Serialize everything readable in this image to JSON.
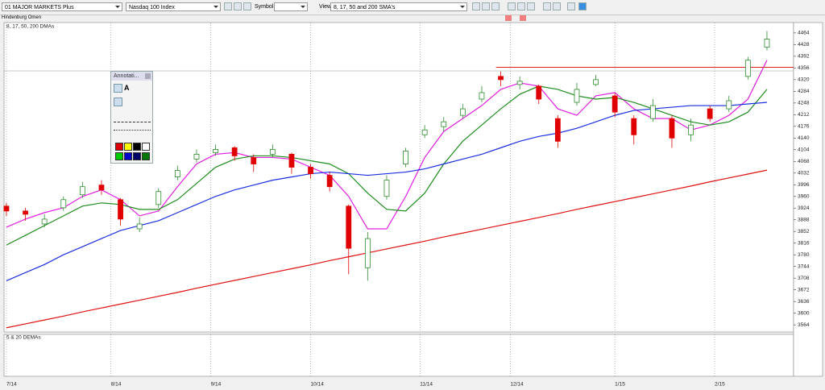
{
  "ui": {
    "list_name": "01 MAJOR MARKETS Plus",
    "index_name": "Nasdaq 100 Index",
    "symbol_label": "Symbol:",
    "view_label": "View:",
    "view_name": "8, 17, 50 and 200 SMA's",
    "study_name": "Hindenburg Omen",
    "panel_title": "8, 17, 50, 200 DMAs",
    "annotation_title": "Annotati...",
    "annotation_text_tool": "A",
    "lower_panel_title": "5 & 20 DEMAs"
  },
  "chart_data": {
    "type": "candlestick",
    "x": [
      0,
      4,
      8,
      12,
      16,
      20,
      24,
      28,
      32,
      36,
      40,
      44,
      48,
      52,
      56,
      60,
      64,
      68,
      72,
      76,
      80,
      84,
      88,
      92,
      96,
      100,
      104,
      108,
      112,
      116,
      120,
      124,
      128,
      132,
      136,
      140,
      144,
      148,
      152,
      156,
      160
    ],
    "open": [
      3930,
      3915,
      3875,
      3925,
      3965,
      3995,
      3950,
      3860,
      3935,
      4020,
      4075,
      4095,
      4110,
      4080,
      4090,
      4090,
      4050,
      4025,
      3930,
      3740,
      3960,
      4060,
      4150,
      4175,
      4210,
      4260,
      4330,
      4305,
      4300,
      4200,
      4250,
      4305,
      4270,
      4200,
      4200,
      4200,
      4150,
      4230,
      4230,
      4330,
      4420
    ],
    "high": [
      3940,
      3925,
      3905,
      3960,
      4005,
      4010,
      3955,
      3895,
      3985,
      4055,
      4105,
      4120,
      4115,
      4090,
      4120,
      4095,
      4060,
      4035,
      3935,
      3850,
      4025,
      4110,
      4180,
      4205,
      4245,
      4300,
      4345,
      4330,
      4305,
      4210,
      4310,
      4335,
      4280,
      4210,
      4260,
      4210,
      4200,
      4240,
      4270,
      4390,
      4470
    ],
    "low": [
      3900,
      3885,
      3865,
      3915,
      3955,
      3965,
      3870,
      3850,
      3925,
      4010,
      4065,
      4085,
      4070,
      4035,
      4080,
      4030,
      4015,
      3975,
      3720,
      3700,
      3950,
      4050,
      4140,
      4160,
      4200,
      4250,
      4300,
      4290,
      4245,
      4110,
      4240,
      4300,
      4205,
      4120,
      4190,
      4110,
      4130,
      4190,
      4220,
      4320,
      4410
    ],
    "close": [
      3915,
      3905,
      3890,
      3950,
      3990,
      3980,
      3890,
      3875,
      3975,
      4040,
      4090,
      4105,
      4085,
      4060,
      4105,
      4050,
      4030,
      3990,
      3800,
      3830,
      4010,
      4100,
      4165,
      4190,
      4230,
      4280,
      4320,
      4315,
      4260,
      4130,
      4290,
      4320,
      4220,
      4150,
      4240,
      4140,
      4180,
      4200,
      4255,
      4380,
      4445
    ],
    "up_color": "#2e8b2e",
    "down_color": "#e00000",
    "series": [
      {
        "color": "#e020e0",
        "values": [
          3865,
          3890,
          3910,
          3925,
          3960,
          3980,
          3950,
          3900,
          3915,
          3990,
          4060,
          4090,
          4095,
          4080,
          4080,
          4075,
          4050,
          4025,
          3960,
          3860,
          3860,
          3960,
          4080,
          4160,
          4200,
          4240,
          4290,
          4310,
          4300,
          4230,
          4210,
          4270,
          4280,
          4230,
          4200,
          4200,
          4165,
          4180,
          4210,
          4260,
          4380
        ]
      },
      {
        "color": "#1e8c1e",
        "values": [
          3810,
          3840,
          3870,
          3900,
          3930,
          3940,
          3935,
          3920,
          3920,
          3950,
          4000,
          4050,
          4075,
          4085,
          4085,
          4080,
          4070,
          4060,
          4030,
          3970,
          3920,
          3915,
          3970,
          4060,
          4130,
          4180,
          4230,
          4275,
          4300,
          4290,
          4270,
          4260,
          4265,
          4250,
          4230,
          4210,
          4190,
          4180,
          4190,
          4220,
          4290
        ]
      },
      {
        "color": "#1a2ee0",
        "values": [
          3700,
          3725,
          3750,
          3780,
          3805,
          3830,
          3855,
          3870,
          3885,
          3910,
          3935,
          3960,
          3980,
          3995,
          4010,
          4020,
          4030,
          4035,
          4030,
          4025,
          4030,
          4035,
          4045,
          4060,
          4075,
          4090,
          4110,
          4130,
          4145,
          4155,
          4170,
          4190,
          4210,
          4225,
          4230,
          4235,
          4240,
          4240,
          4240,
          4245,
          4250
        ]
      },
      {
        "color": "#e01010",
        "values": [
          3555,
          3567,
          3579,
          3591,
          3604,
          3616,
          3628,
          3640,
          3652,
          3664,
          3677,
          3689,
          3701,
          3713,
          3725,
          3737,
          3749,
          3762,
          3774,
          3786,
          3798,
          3810,
          3822,
          3835,
          3847,
          3859,
          3871,
          3883,
          3895,
          3907,
          3920,
          3932,
          3944,
          3956,
          3968,
          3980,
          3992,
          4005,
          4017,
          4029,
          4041
        ]
      }
    ],
    "hline": {
      "value": 4358,
      "from": 103,
      "color": "#e02020"
    },
    "xlim": [
      -0.5,
      165.6
    ],
    "xticks": [
      {
        "value": 0,
        "label": "7/14"
      },
      {
        "value": 22,
        "label": "8/14"
      },
      {
        "value": 43,
        "label": "9/14"
      },
      {
        "value": 64,
        "label": "10/14"
      },
      {
        "value": 87,
        "label": "11/14"
      },
      {
        "value": 106,
        "label": "12/14"
      },
      {
        "value": 128,
        "label": "1/15"
      },
      {
        "value": 149,
        "label": "2/15"
      }
    ],
    "ylim": [
      3542,
      4496
    ],
    "yticks": [
      3564,
      3600,
      3636,
      3672,
      3708,
      3744,
      3780,
      3816,
      3852,
      3888,
      3924,
      3960,
      3996,
      4032,
      4068,
      4104,
      4140,
      4176,
      4212,
      4248,
      4284,
      4320,
      4356,
      4392,
      4428,
      4464
    ],
    "grid": true
  }
}
